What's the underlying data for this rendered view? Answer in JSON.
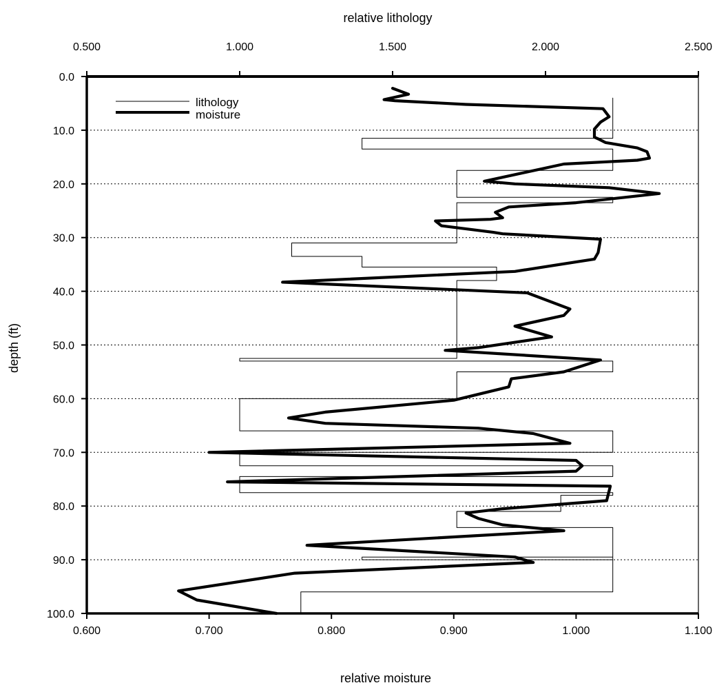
{
  "chart_data": {
    "type": "line",
    "top_axis_label": "relative lithology",
    "xlabel": "relative moisture",
    "ylabel": "depth (ft)",
    "bottom_ticks": [
      "0.600",
      "0.700",
      "0.800",
      "0.900",
      "1.000",
      "1.100"
    ],
    "bottom_tick_values": [
      0.6,
      0.7,
      0.8,
      0.9,
      1.0,
      1.1
    ],
    "top_ticks": [
      "0.500",
      "1.000",
      "1.500",
      "2.000",
      "2.500"
    ],
    "top_tick_values": [
      0.5,
      1.0,
      1.5,
      2.0,
      2.5
    ],
    "y_ticks": [
      "0.0",
      "10.0",
      "20.0",
      "30.0",
      "40.0",
      "50.0",
      "60.0",
      "70.0",
      "80.0",
      "90.0",
      "100.0"
    ],
    "y_tick_values": [
      0,
      10,
      20,
      30,
      40,
      50,
      60,
      70,
      80,
      90,
      100
    ],
    "xlim": [
      0.6,
      1.1
    ],
    "top_xlim": [
      0.5,
      2.5
    ],
    "ylim": [
      0,
      100
    ],
    "y_inverted": true,
    "grid": "horizontal dotted at each y tick",
    "legend_position": "top-left",
    "series": [
      {
        "name": "lithology",
        "axis": "top",
        "style": "thin step",
        "x": [
          2.22,
          2.22,
          1.4,
          1.4,
          2.22,
          2.22,
          1.71,
          1.71,
          2.22,
          2.22,
          1.71,
          1.71,
          1.17,
          1.17,
          1.4,
          1.4,
          1.84,
          1.84,
          1.71,
          1.71,
          1.0,
          1.0,
          2.22,
          2.22,
          1.71,
          1.71,
          1.0,
          1.0,
          2.22,
          2.22,
          1.0,
          1.0,
          2.22,
          2.22,
          1.0,
          1.0,
          2.22,
          2.22,
          2.05,
          2.05,
          1.71,
          1.71,
          2.22,
          2.22,
          1.4,
          1.4,
          2.22,
          2.22,
          1.2,
          1.2
        ],
        "y": [
          4,
          11.5,
          11.5,
          13.5,
          13.5,
          17.5,
          17.5,
          22.5,
          22.5,
          23.5,
          23.5,
          31,
          31,
          33.5,
          33.5,
          35.5,
          35.5,
          38,
          38,
          52.5,
          52.5,
          53,
          53,
          55,
          55,
          60,
          60,
          66,
          66,
          70,
          70,
          72.5,
          72.5,
          74.5,
          74.5,
          77.5,
          77.5,
          78,
          78,
          81,
          81,
          84,
          84,
          90,
          90,
          89.5,
          89.5,
          96,
          96,
          100
        ]
      },
      {
        "name": "moisture",
        "axis": "bottom",
        "style": "thick line",
        "x": [
          0.85,
          0.863,
          0.843,
          0.852,
          0.91,
          1.022,
          1.027,
          1.02,
          1.015,
          1.015,
          1.018,
          1.024,
          1.05,
          1.058,
          1.06,
          1.05,
          0.99,
          0.925,
          0.95,
          1.027,
          1.068,
          1.0,
          0.945,
          0.934,
          0.94,
          0.93,
          0.885,
          0.89,
          0.932,
          0.94,
          1.02,
          1.018,
          1.015,
          0.95,
          0.76,
          0.96,
          0.995,
          0.99,
          0.95,
          0.98,
          0.92,
          0.893,
          1.02,
          0.99,
          0.947,
          0.945,
          0.9,
          0.795,
          0.765,
          0.795,
          0.92,
          0.965,
          0.995,
          0.7,
          1.0,
          1.005,
          1.0,
          0.715,
          1.028,
          1.025,
          0.94,
          0.91,
          0.92,
          0.94,
          0.99,
          0.78,
          0.95,
          0.965,
          0.77,
          0.675,
          0.69,
          0.755
        ],
        "y": [
          2.2,
          3.3,
          4.3,
          4.5,
          5.2,
          6,
          7.5,
          8.5,
          9.8,
          11.3,
          11.6,
          12.3,
          13.3,
          14,
          15.2,
          15.6,
          16.3,
          19.5,
          20,
          20.7,
          21.8,
          23.5,
          24.3,
          25.3,
          26.3,
          26.6,
          26.9,
          27.8,
          29,
          29.3,
          30.3,
          32.8,
          34,
          36.3,
          38.3,
          40.3,
          43.3,
          44.5,
          46.5,
          48.5,
          50.5,
          51,
          52.8,
          55,
          56.3,
          57.8,
          60.3,
          62.5,
          63.6,
          64.6,
          65.5,
          66.5,
          68.3,
          70,
          71.5,
          72.5,
          73.5,
          75.5,
          76.3,
          79,
          80.5,
          81.3,
          82.3,
          83.5,
          84.6,
          87.3,
          89.5,
          90.5,
          92.5,
          95.8,
          97.5,
          100
        ]
      }
    ]
  }
}
